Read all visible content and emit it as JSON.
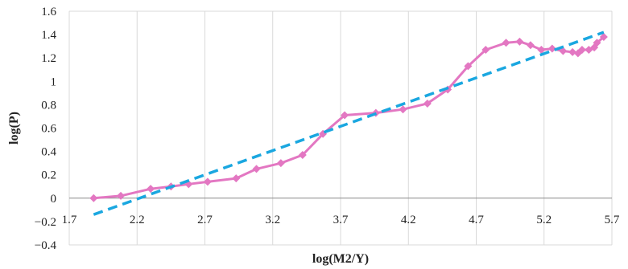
{
  "chart_data": {
    "type": "line",
    "title": "",
    "xlabel": "log(M2/Y)",
    "ylabel": "log(P)",
    "xlim": [
      1.7,
      5.7
    ],
    "ylim": [
      -0.4,
      1.6
    ],
    "x_ticks": [
      "1.7",
      "2.2",
      "2.7",
      "3.2",
      "3.7",
      "4.2",
      "4.7",
      "5.2",
      "5.7"
    ],
    "x_tick_values": [
      1.7,
      2.2,
      2.7,
      3.2,
      3.7,
      4.2,
      4.7,
      5.2,
      5.7
    ],
    "y_ticks": [
      "-0.4",
      "-0.2",
      "0",
      "0.2",
      "0.4",
      "0.6",
      "0.8",
      "1",
      "1.2",
      "1.4",
      "1.6"
    ],
    "y_tick_values": [
      -0.4,
      -0.2,
      0,
      0.2,
      0.4,
      0.6,
      0.8,
      1,
      1.2,
      1.4,
      1.6
    ],
    "grid": "vertical",
    "legend": "none",
    "series": [
      {
        "style": "line-with-diamond-markers",
        "color": "#e377c2",
        "points": [
          [
            1.88,
            0.0
          ],
          [
            2.08,
            0.02
          ],
          [
            2.3,
            0.08
          ],
          [
            2.45,
            0.1
          ],
          [
            2.58,
            0.12
          ],
          [
            2.72,
            0.14
          ],
          [
            2.93,
            0.17
          ],
          [
            3.08,
            0.25
          ],
          [
            3.26,
            0.3
          ],
          [
            3.42,
            0.37
          ],
          [
            3.57,
            0.55
          ],
          [
            3.73,
            0.71
          ],
          [
            3.96,
            0.73
          ],
          [
            4.16,
            0.76
          ],
          [
            4.34,
            0.81
          ],
          [
            4.49,
            0.93
          ],
          [
            4.64,
            1.13
          ],
          [
            4.77,
            1.27
          ],
          [
            4.92,
            1.33
          ],
          [
            5.02,
            1.34
          ],
          [
            5.1,
            1.31
          ],
          [
            5.18,
            1.27
          ],
          [
            5.26,
            1.28
          ],
          [
            5.34,
            1.26
          ],
          [
            5.41,
            1.25
          ],
          [
            5.45,
            1.24
          ],
          [
            5.48,
            1.27
          ],
          [
            5.53,
            1.27
          ],
          [
            5.57,
            1.29
          ],
          [
            5.59,
            1.33
          ],
          [
            5.64,
            1.38
          ]
        ]
      },
      {
        "style": "dashed-trendline",
        "color": "#1aa7e0",
        "points": [
          [
            1.88,
            -0.14
          ],
          [
            5.64,
            1.42
          ]
        ]
      }
    ]
  }
}
